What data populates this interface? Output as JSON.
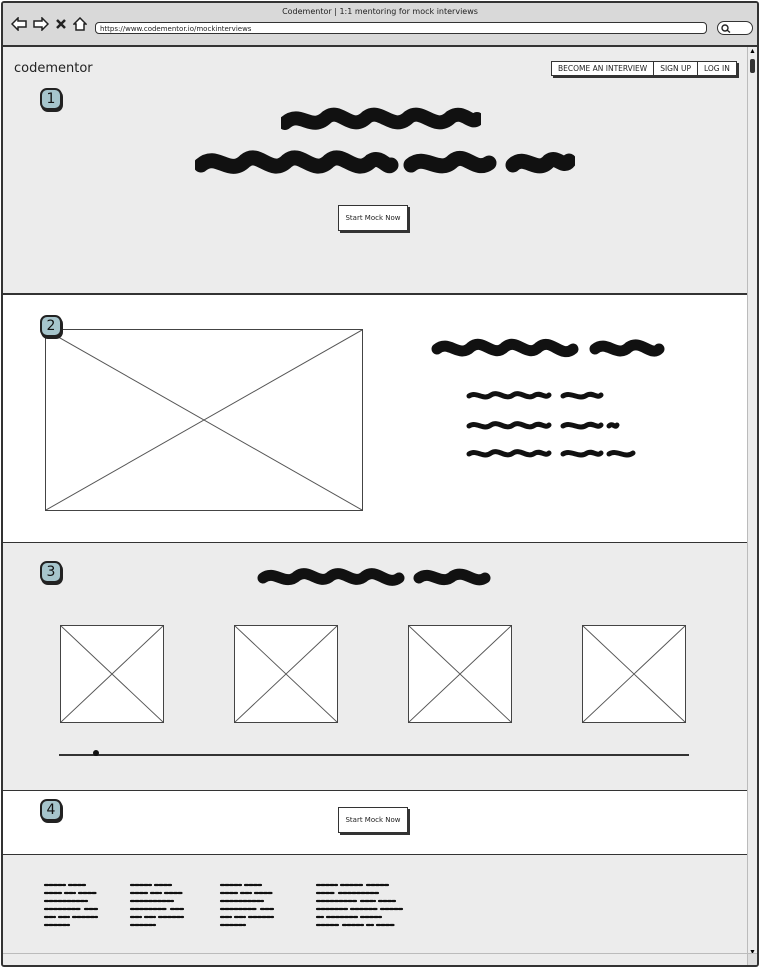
{
  "window": {
    "title": "Codementor | 1:1 mentoring for mock interviews",
    "url": "https://www.codementor.io/mockinterviews"
  },
  "header": {
    "logo": "codementor",
    "nav": [
      "BECOME AN INTERVIEW",
      "SIGN UP",
      "LOG IN"
    ]
  },
  "sections": {
    "s1": {
      "marker": "1",
      "cta": "Start Mock Now"
    },
    "s2": {
      "marker": "2"
    },
    "s3": {
      "marker": "3"
    },
    "s4": {
      "marker": "4",
      "cta": "Start Mock Now"
    }
  },
  "colors": {
    "marker_fill": "#a6c5cc",
    "frame": "#333333",
    "section_gray": "#ececec"
  },
  "icons": [
    "back-arrow-icon",
    "forward-arrow-icon",
    "close-icon",
    "home-icon",
    "search-icon"
  ]
}
